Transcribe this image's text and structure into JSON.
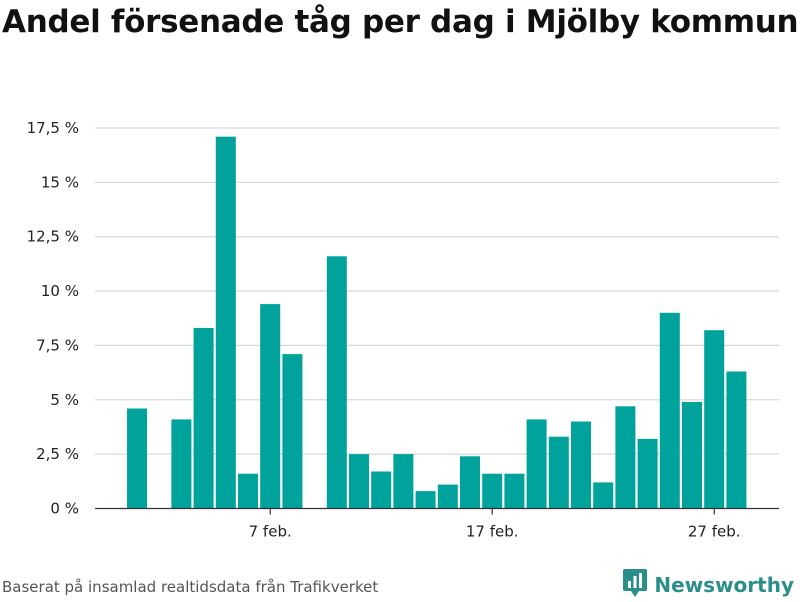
{
  "title": "Andel försenade tåg per dag i Mjölby kommun",
  "source": "Baserat på insamlad realtidsdata från Trafikverket",
  "brand": {
    "name": "Newsworthy",
    "icon": "newsworthy-logo-icon",
    "color": "#2a8f8a"
  },
  "colors": {
    "bar": "#00a39b",
    "grid": "#d9d9d9",
    "axis": "#333333"
  },
  "chart_data": {
    "type": "bar",
    "title": "Andel försenade tåg per dag i Mjölby kommun",
    "xlabel": "",
    "ylabel": "",
    "ylim": [
      0,
      17.5
    ],
    "y_ticks": [
      {
        "value": 0,
        "label": "0 %"
      },
      {
        "value": 2.5,
        "label": "2,5 %"
      },
      {
        "value": 5,
        "label": "5 %"
      },
      {
        "value": 7.5,
        "label": "7,5 %"
      },
      {
        "value": 10,
        "label": "10 %"
      },
      {
        "value": 12.5,
        "label": "12,5 %"
      },
      {
        "value": 15,
        "label": "15 %"
      },
      {
        "value": 17.5,
        "label": "17,5 %"
      }
    ],
    "x_ticks": [
      {
        "category": "7 feb.",
        "label": "7 feb."
      },
      {
        "category": "17 feb.",
        "label": "17 feb."
      },
      {
        "category": "27 feb.",
        "label": "27 feb."
      }
    ],
    "categories": [
      "1 feb.",
      "2 feb.",
      "3 feb.",
      "4 feb.",
      "5 feb.",
      "6 feb.",
      "7 feb.",
      "8 feb.",
      "9 feb.",
      "10 feb.",
      "11 feb.",
      "12 feb.",
      "13 feb.",
      "14 feb.",
      "15 feb.",
      "16 feb.",
      "17 feb.",
      "18 feb.",
      "19 feb.",
      "20 feb.",
      "21 feb.",
      "22 feb.",
      "23 feb.",
      "24 feb.",
      "25 feb.",
      "26 feb.",
      "27 feb.",
      "28 feb.",
      "29 feb."
    ],
    "values": [
      4.6,
      null,
      4.1,
      8.3,
      17.1,
      1.6,
      9.4,
      7.1,
      null,
      11.6,
      2.5,
      1.7,
      2.5,
      0.8,
      1.1,
      2.4,
      1.6,
      1.6,
      4.1,
      3.3,
      4.0,
      1.2,
      4.7,
      3.2,
      9.0,
      4.9,
      8.2,
      6.3,
      null
    ],
    "grid": true,
    "legend": "none"
  }
}
